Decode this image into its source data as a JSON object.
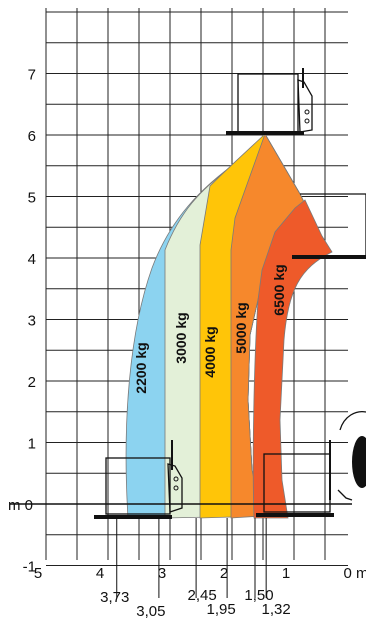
{
  "chart_data": {
    "type": "area",
    "title": "",
    "x_unit": "m",
    "y_unit": "m",
    "xlim": [
      0,
      5
    ],
    "ylim": [
      -1,
      7.5
    ],
    "grid": true,
    "y_ticks": [
      {
        "value": 7,
        "label": "7"
      },
      {
        "value": 6,
        "label": "6"
      },
      {
        "value": 5,
        "label": "5"
      },
      {
        "value": 4,
        "label": "4"
      },
      {
        "value": 3,
        "label": "3"
      },
      {
        "value": 2,
        "label": "2"
      },
      {
        "value": 1,
        "label": "1"
      },
      {
        "value": 0,
        "label": "m 0"
      },
      {
        "value": -1,
        "label": "-1"
      }
    ],
    "x_ticks_major": [
      {
        "value": 5,
        "label": "5"
      },
      {
        "value": 4,
        "label": "4"
      },
      {
        "value": 3,
        "label": "3"
      },
      {
        "value": 2,
        "label": "2"
      },
      {
        "value": 1,
        "label": "1"
      },
      {
        "value": 0,
        "label": "0 m"
      }
    ],
    "x_marks": [
      {
        "value": 3.73,
        "label": "3,73"
      },
      {
        "value": 3.05,
        "label": "3,05"
      },
      {
        "value": 2.45,
        "label": "2,45"
      },
      {
        "value": 1.95,
        "label": "1,95"
      },
      {
        "value": 1.5,
        "label": "1,50"
      },
      {
        "value": 1.32,
        "label": "1,32"
      }
    ],
    "zones": [
      {
        "name": "2200 kg",
        "color": "#8cd3f0",
        "max_reach_m": 3.73
      },
      {
        "name": "3000 kg",
        "color": "#e3f0d8",
        "max_reach_m": 3.05
      },
      {
        "name": "4000 kg",
        "color": "#ffc508",
        "max_reach_m": 2.45
      },
      {
        "name": "5000 kg",
        "color": "#f6882c",
        "max_reach_m": 1.95
      },
      {
        "name": "6500 kg",
        "color": "#ee5a2a",
        "max_reach_m": 1.5
      }
    ],
    "max_lift_height_m": 6.0
  }
}
